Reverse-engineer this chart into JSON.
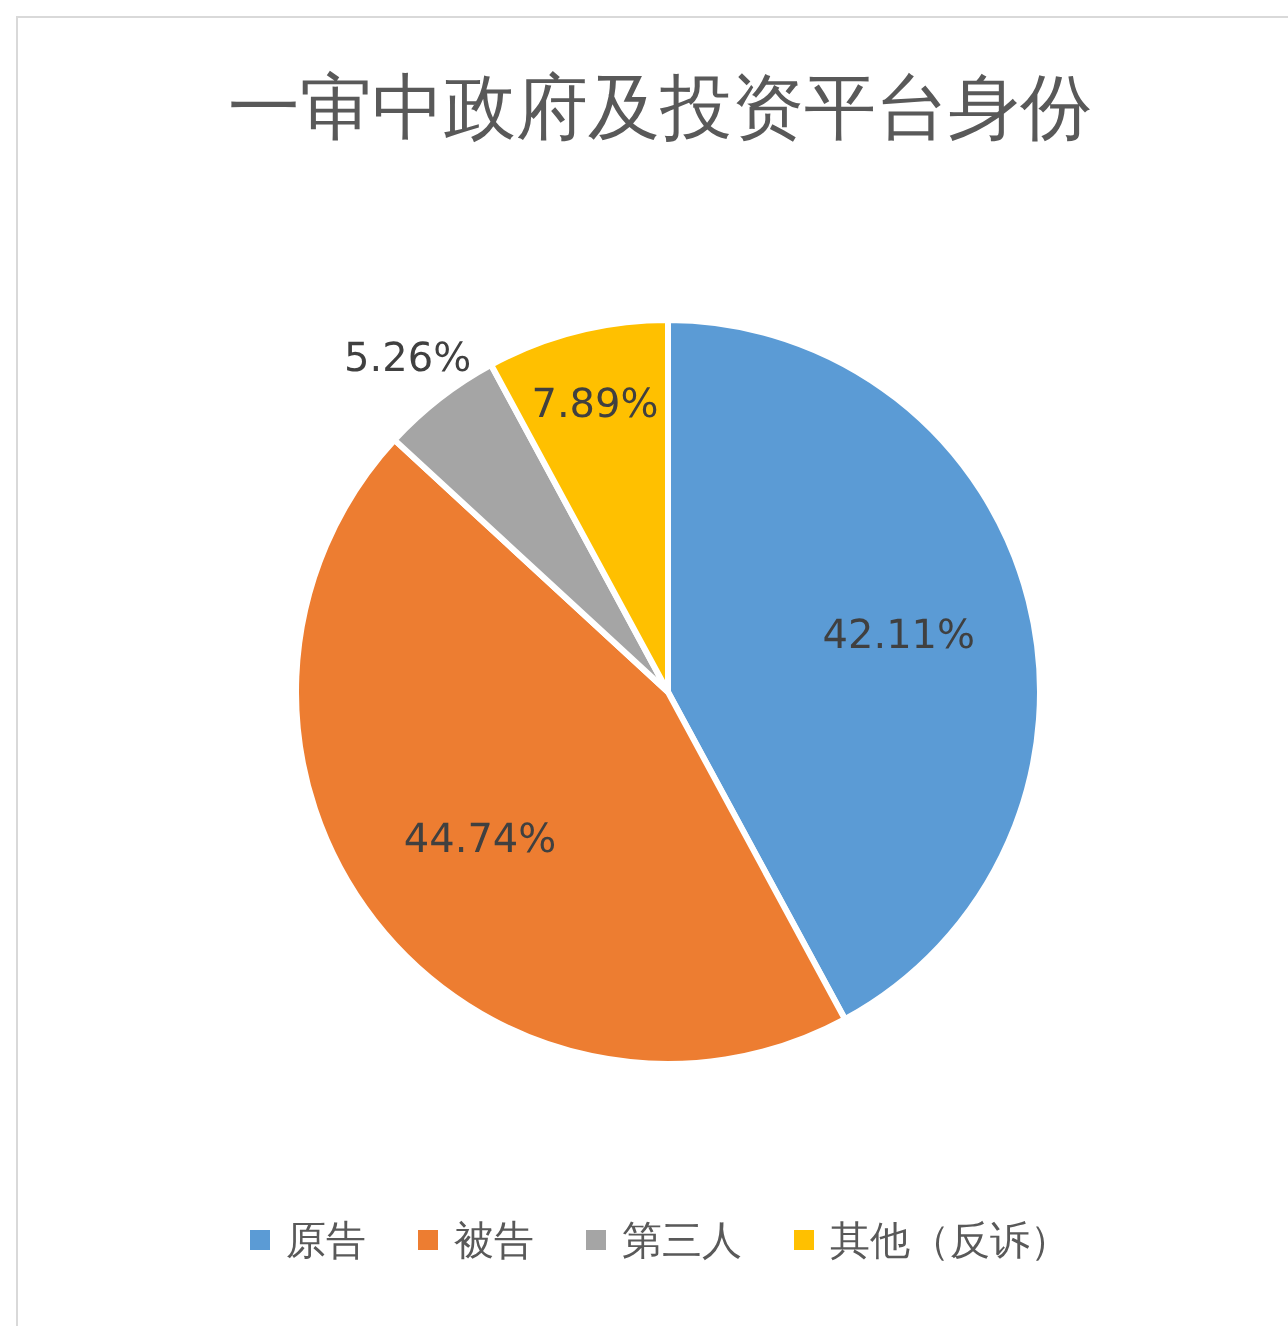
{
  "chart_data": {
    "type": "pie",
    "title": "一审中政府及投资平台身份",
    "categories": [
      "原告",
      "被告",
      "第三人",
      "其他（反诉）"
    ],
    "values": [
      42.11,
      44.74,
      5.26,
      7.89
    ],
    "colors": [
      "#5b9bd5",
      "#ed7d31",
      "#a5a5a5",
      "#ffc000"
    ],
    "value_labels": [
      "42.11%",
      "44.74%",
      "5.26%",
      "7.89%"
    ],
    "legend": "bottom"
  }
}
